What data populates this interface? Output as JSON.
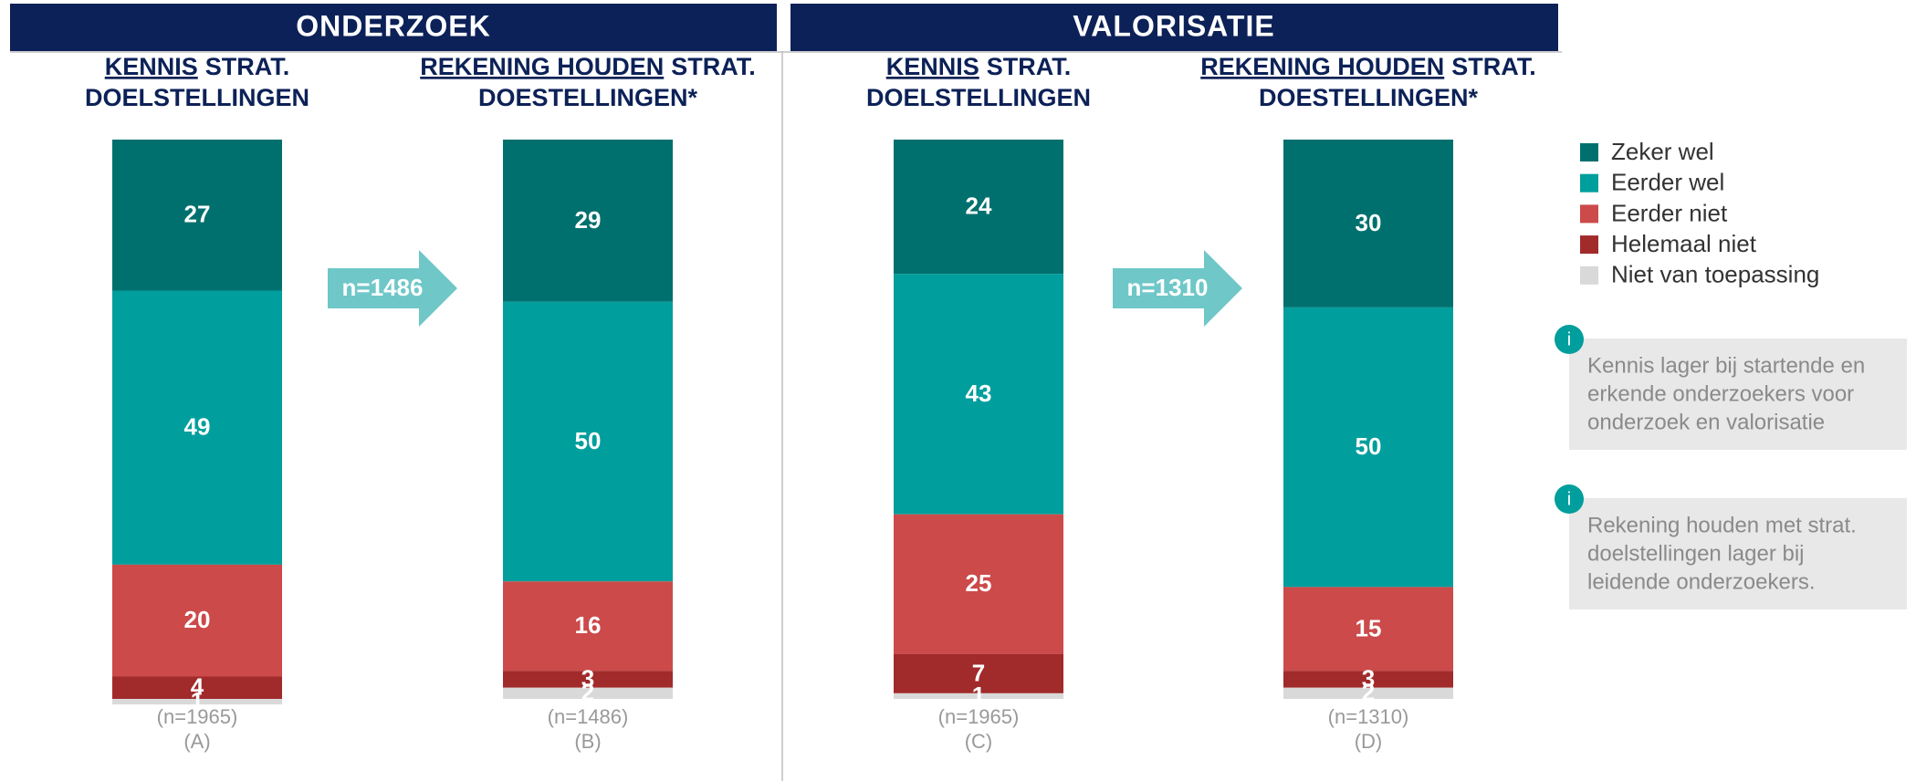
{
  "chart_data": {
    "type": "stacked_bar",
    "groups": [
      {
        "title": "ONDERZOEK",
        "arrow_label": "n=1486"
      },
      {
        "title": "VALORISATIE",
        "arrow_label": "n=1310"
      }
    ],
    "categories": [
      {
        "title_underlined": "KENNIS",
        "title_rest": "STRAT.",
        "title_line2": "DOELSTELLINGEN",
        "n_label": "(n=1965)",
        "letter": "(A)"
      },
      {
        "title_underlined": "REKENING HOUDEN",
        "title_rest": "STRAT.",
        "title_line2": "DOESTELLINGEN*",
        "n_label": "(n=1486)",
        "letter": "(B)"
      },
      {
        "title_underlined": "KENNIS",
        "title_rest": "STRAT.",
        "title_line2": "DOELSTELLINGEN",
        "n_label": "(n=1965)",
        "letter": "(C)"
      },
      {
        "title_underlined": "REKENING HOUDEN",
        "title_rest": "STRAT.",
        "title_line2": "DOESTELLINGEN*",
        "n_label": "(n=1310)",
        "letter": "(D)"
      }
    ],
    "series": [
      {
        "name": "Zeker wel",
        "color": "#00706e",
        "values": [
          27,
          29,
          24,
          30
        ]
      },
      {
        "name": "Eerder wel",
        "color": "#009e9c",
        "values": [
          49,
          50,
          43,
          50
        ]
      },
      {
        "name": "Eerder niet",
        "color": "#cc4a4a",
        "values": [
          20,
          16,
          25,
          15
        ]
      },
      {
        "name": "Helemaal niet",
        "color": "#a12a2b",
        "values": [
          4,
          3,
          7,
          3
        ]
      },
      {
        "name": "Niet van toepassing",
        "color": "#d9d9d9",
        "values": [
          1,
          2,
          1,
          2
        ]
      }
    ],
    "ylim": [
      0,
      100
    ],
    "notes": [
      {
        "icon": "i",
        "lines": [
          "Kennis lager bij startende en",
          "erkende onderzoekers voor",
          "onderzoek en valorisatie"
        ]
      },
      {
        "icon": "i",
        "lines": [
          "Rekening houden met strat.",
          "doelstellingen lager bij",
          "leidende onderzoekers."
        ]
      }
    ]
  }
}
